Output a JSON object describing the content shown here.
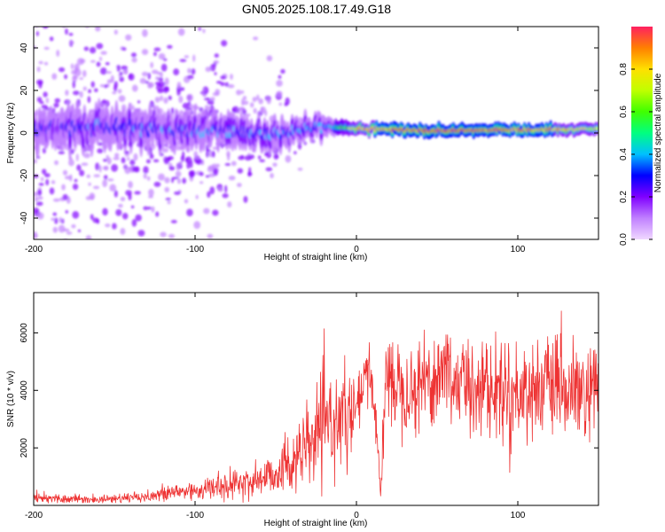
{
  "title": "GN05.2025.108.17.49.G18",
  "chart_data": [
    {
      "type": "heatmap",
      "xlabel": "Height of straight line (km)",
      "ylabel": "Frequency (Hz)",
      "xlim": [
        -200,
        150
      ],
      "ylim": [
        -50,
        50
      ],
      "xticks": [
        -200,
        -100,
        0,
        100
      ],
      "xtick_labels": [
        "-200",
        "-100",
        "0",
        "100"
      ],
      "yticks": [
        -40,
        -20,
        0,
        20,
        40
      ],
      "ytick_labels": [
        "-40",
        "-20",
        "0",
        "20",
        "40"
      ],
      "colorbar": {
        "label": "Normalized spectral amplitude",
        "range": [
          0,
          1
        ],
        "ticks": [
          0.0,
          0.2,
          0.4,
          0.6,
          0.8
        ],
        "tick_labels": [
          "0.0",
          "0.2",
          "0.4",
          "0.6",
          "0.8"
        ],
        "colormap": [
          "#f0d8ff",
          "#c080ff",
          "#8000ff",
          "#0000ff",
          "#00c0ff",
          "#00ff80",
          "#40ff00",
          "#c0ff00",
          "#ffe000",
          "#ff8000",
          "#ff2060"
        ]
      },
      "ridge": {
        "description_points": [
          {
            "x": -200,
            "center_hz": 3,
            "spread_hz": 7,
            "amplitude": 0.25
          },
          {
            "x": -150,
            "center_hz": 3,
            "spread_hz": 7,
            "amplitude": 0.3
          },
          {
            "x": -100,
            "center_hz": 1,
            "spread_hz": 6,
            "amplitude": 0.3
          },
          {
            "x": -50,
            "center_hz": 0,
            "spread_hz": 5,
            "amplitude": 0.32
          },
          {
            "x": -20,
            "center_hz": 3,
            "spread_hz": 4,
            "amplitude": 0.35
          },
          {
            "x": 0,
            "center_hz": 2,
            "spread_hz": 2.5,
            "amplitude": 0.8
          },
          {
            "x": 50,
            "center_hz": 1,
            "spread_hz": 2.5,
            "amplitude": 0.95
          },
          {
            "x": 100,
            "center_hz": 1.5,
            "spread_hz": 2.5,
            "amplitude": 0.9
          },
          {
            "x": 150,
            "center_hz": 2,
            "spread_hz": 2.5,
            "amplitude": 0.75
          }
        ],
        "scatter_noise_region_x": [
          -200,
          -20
        ]
      }
    },
    {
      "type": "line",
      "xlabel": "Height of straight line (km)",
      "ylabel": "SNR (10 * v/v)",
      "xlim": [
        -200,
        150
      ],
      "ylim": [
        0,
        7400
      ],
      "xticks": [
        -200,
        -100,
        0,
        100
      ],
      "xtick_labels": [
        "-200",
        "-100",
        "0",
        "100"
      ],
      "yticks": [
        2000,
        4000,
        6000
      ],
      "ytick_labels": [
        "2000",
        "4000",
        "6000"
      ],
      "color": "#ee3333",
      "series": [
        {
          "name": "SNR",
          "x": [
            -200,
            -190,
            -180,
            -170,
            -160,
            -150,
            -140,
            -130,
            -120,
            -110,
            -100,
            -90,
            -80,
            -70,
            -60,
            -50,
            -40,
            -30,
            -25,
            -20,
            -15,
            -10,
            -5,
            0,
            5,
            8,
            12,
            15,
            18,
            20,
            25,
            30,
            35,
            40,
            45,
            50,
            55,
            60,
            65,
            70,
            75,
            80,
            85,
            90,
            95,
            100,
            105,
            110,
            115,
            120,
            125,
            130,
            135,
            140,
            145,
            150
          ],
          "values": [
            300,
            250,
            220,
            200,
            200,
            230,
            280,
            330,
            380,
            480,
            520,
            600,
            700,
            780,
            900,
            1150,
            1500,
            2000,
            2400,
            2700,
            2900,
            3100,
            3000,
            3200,
            4300,
            4600,
            3200,
            400,
            4200,
            4500,
            4300,
            4200,
            4000,
            4300,
            4500,
            4300,
            5000,
            4200,
            4400,
            4000,
            4300,
            4200,
            3900,
            4100,
            4000,
            3700,
            4200,
            3900,
            4300,
            4000,
            4100,
            3800,
            4000,
            3700,
            3900,
            3800
          ],
          "noise_amplitude": [
            150,
            150,
            130,
            120,
            120,
            140,
            170,
            200,
            250,
            300,
            300,
            350,
            400,
            450,
            550,
            700,
            900,
            1100,
            1300,
            1500,
            1400,
            1300,
            1200,
            1100,
            900,
            900,
            700,
            200,
            1300,
            1300,
            1300,
            1300,
            1300,
            1400,
            1400,
            1500,
            1500,
            1400,
            1400,
            1400,
            1400,
            1400,
            1400,
            1400,
            1400,
            1400,
            1400,
            1400,
            1400,
            1400,
            1400,
            1400,
            1400,
            1400,
            1400,
            1400
          ]
        }
      ]
    }
  ]
}
